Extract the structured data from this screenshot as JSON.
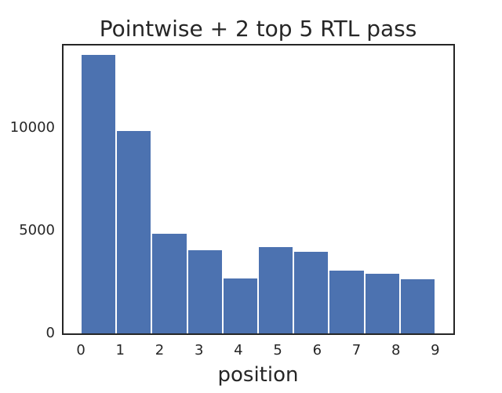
{
  "figure": {
    "background_color": "#ffffff",
    "text_color": "#262626",
    "spine_color": "#262626"
  },
  "chart_data": {
    "type": "bar",
    "title": "Pointwise + 2 top 5 RTL pass",
    "xlabel": "position",
    "ylabel": "",
    "categories": [
      0,
      1,
      2,
      3,
      4,
      5,
      6,
      7,
      8,
      9
    ],
    "values": [
      13550,
      9880,
      4870,
      4060,
      2700,
      4230,
      4000,
      3100,
      2950,
      2670
    ],
    "x_tick_labels": [
      "0",
      "1",
      "2",
      "3",
      "4",
      "5",
      "6",
      "7",
      "8",
      "9"
    ],
    "y_ticks": [
      0,
      5000,
      10000
    ],
    "y_tick_labels": [
      "0",
      "5000",
      "10000"
    ],
    "xlim": [
      -0.45,
      9.45
    ],
    "ylim": [
      0,
      14000
    ],
    "bin_start": 0,
    "bin_width": 0.9,
    "grid": false,
    "legend": false,
    "bar_color": "#4c72b0",
    "bar_edge_color": "#ffffff",
    "spine_color": "#262626",
    "text_color": "#262626"
  }
}
